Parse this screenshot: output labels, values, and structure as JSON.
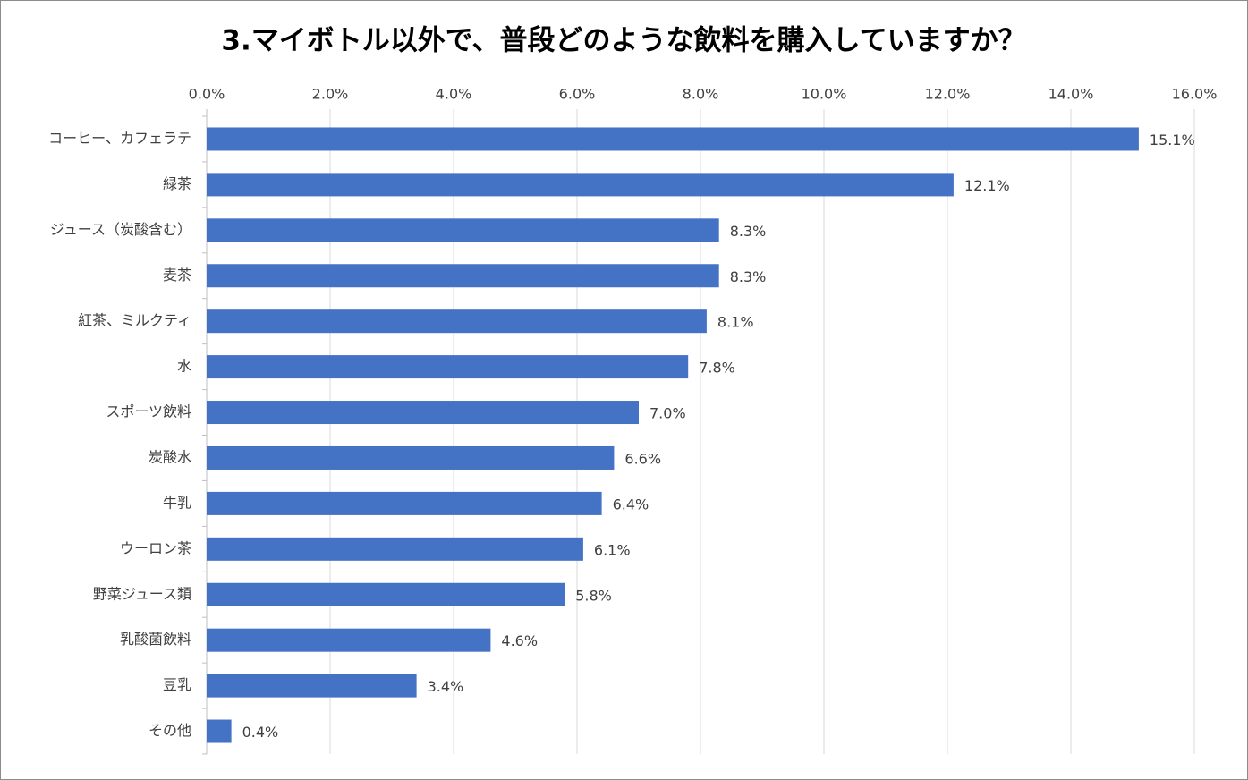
{
  "chart_data": {
    "type": "bar",
    "orientation": "horizontal",
    "title": "3.マイボトル以外で、普段どのような飲料を購入していますか？",
    "categories": [
      "コーヒー、カフェラテ",
      "緑茶",
      "ジュース（炭酸含む）",
      "麦茶",
      "紅茶、ミルクティ",
      "水",
      "スポーツ飲料",
      "炭酸水",
      "牛乳",
      "ウーロン茶",
      "野菜ジュース類",
      "乳酸菌飲料",
      "豆乳",
      "その他"
    ],
    "values": [
      15.1,
      12.1,
      8.3,
      8.3,
      8.1,
      7.8,
      7.0,
      6.6,
      6.4,
      6.1,
      5.8,
      4.6,
      3.4,
      0.4
    ],
    "value_labels": [
      "15.1%",
      "12.1%",
      "8.3%",
      "8.3%",
      "8.1%",
      "7.8%",
      "7.0%",
      "6.6%",
      "6.4%",
      "6.1%",
      "5.8%",
      "4.6%",
      "3.4%",
      "0.4%"
    ],
    "color": "#4472c4",
    "xlim": [
      0,
      16
    ],
    "xticks": [
      {
        "value": 0,
        "label": "0.0%"
      },
      {
        "value": 2,
        "label": "2.0%"
      },
      {
        "value": 4,
        "label": "4.0%"
      },
      {
        "value": 6,
        "label": "6.0%"
      },
      {
        "value": 8,
        "label": "8.0%"
      },
      {
        "value": 10,
        "label": "10.0%"
      },
      {
        "value": 12,
        "label": "12.0%"
      },
      {
        "value": 14,
        "label": "14.0%"
      },
      {
        "value": 16,
        "label": "16.0%"
      }
    ],
    "grid": true
  }
}
